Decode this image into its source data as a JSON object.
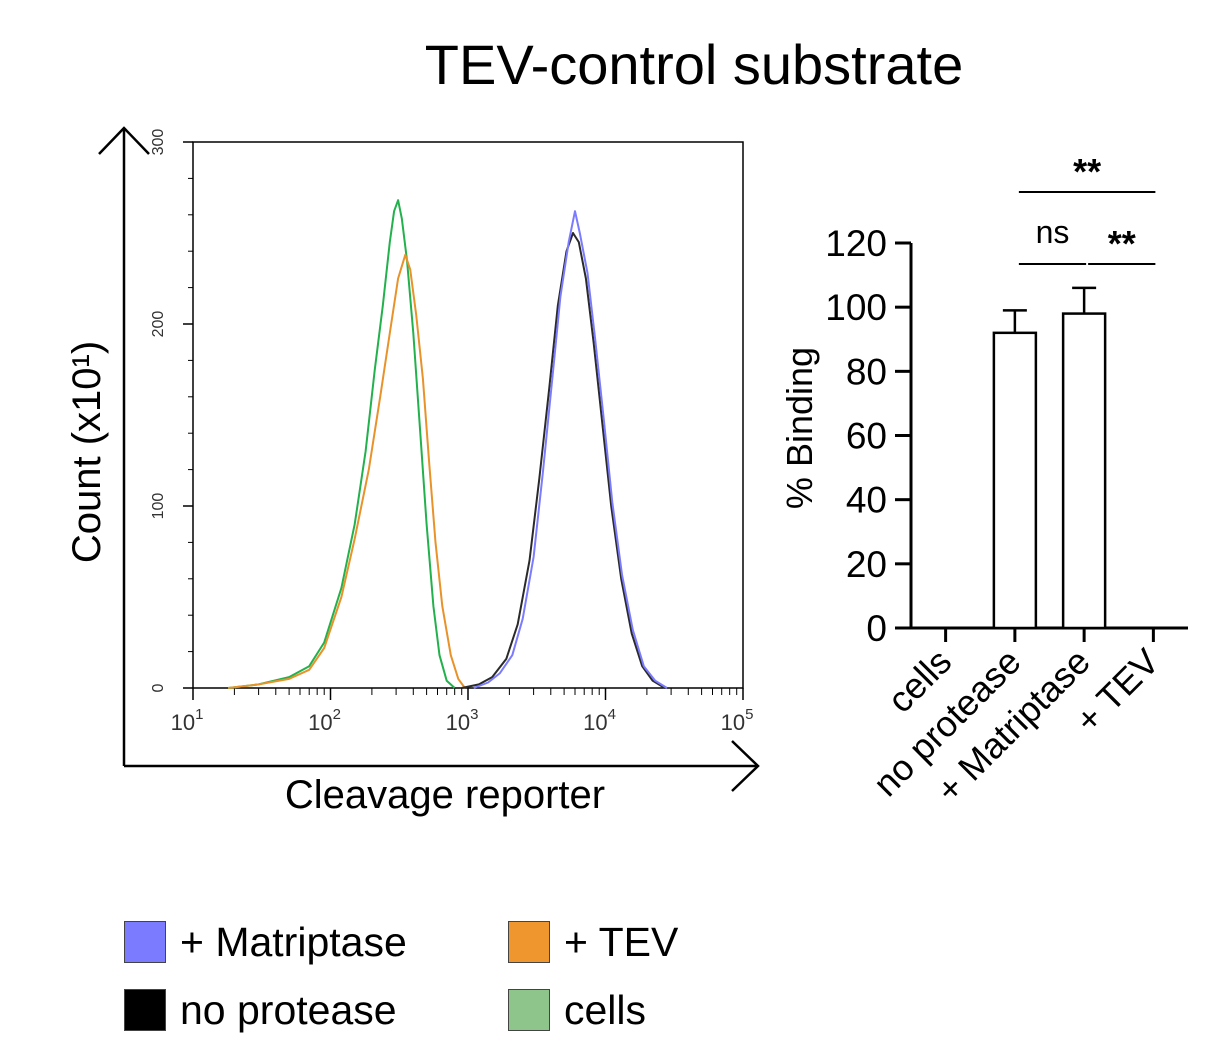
{
  "figure_title": "TEV-control substrate",
  "legend": [
    {
      "label": "+ Matriptase",
      "color": "#7b7bff"
    },
    {
      "label": "+ TEV",
      "color": "#f0962e"
    },
    {
      "label": "no protease",
      "color": "#000000"
    },
    {
      "label": "cells",
      "color": "#8ec58a"
    }
  ],
  "chart_data": [
    {
      "type": "line",
      "subtype": "flow-cytometry-histogram",
      "title": "",
      "outer_ylabel": "Count (x10¹)",
      "xlabel": "Cleavage reporter",
      "xscale": "log10",
      "xlim": [
        10,
        100000
      ],
      "ylim": [
        0,
        300
      ],
      "x_ticks": [
        {
          "value": 10,
          "label": "10",
          "sup": "1"
        },
        {
          "value": 100,
          "label": "10",
          "sup": "2"
        },
        {
          "value": 1000,
          "label": "10",
          "sup": "3"
        },
        {
          "value": 10000,
          "label": "10",
          "sup": "4"
        },
        {
          "value": 100000,
          "label": "10",
          "sup": "5"
        }
      ],
      "y_ticks": [
        0,
        100,
        200,
        300
      ],
      "series": [
        {
          "name": "cells",
          "color": "#22b14c",
          "points": [
            [
              18,
              0
            ],
            [
              30,
              2
            ],
            [
              50,
              6
            ],
            [
              70,
              12
            ],
            [
              90,
              25
            ],
            [
              120,
              55
            ],
            [
              150,
              90
            ],
            [
              180,
              130
            ],
            [
              210,
              175
            ],
            [
              240,
              210
            ],
            [
              270,
              245
            ],
            [
              290,
              262
            ],
            [
              310,
              268
            ],
            [
              330,
              258
            ],
            [
              360,
              235
            ],
            [
              400,
              195
            ],
            [
              450,
              140
            ],
            [
              500,
              90
            ],
            [
              560,
              45
            ],
            [
              620,
              18
            ],
            [
              700,
              4
            ],
            [
              800,
              0
            ]
          ]
        },
        {
          "name": "+ TEV",
          "color": "#e8922a",
          "points": [
            [
              18,
              0
            ],
            [
              30,
              2
            ],
            [
              50,
              5
            ],
            [
              70,
              10
            ],
            [
              90,
              22
            ],
            [
              120,
              50
            ],
            [
              150,
              82
            ],
            [
              190,
              120
            ],
            [
              230,
              160
            ],
            [
              270,
              195
            ],
            [
              310,
              225
            ],
            [
              350,
              238
            ],
            [
              380,
              230
            ],
            [
              420,
              205
            ],
            [
              470,
              170
            ],
            [
              520,
              125
            ],
            [
              580,
              80
            ],
            [
              650,
              45
            ],
            [
              750,
              18
            ],
            [
              850,
              5
            ],
            [
              950,
              0
            ]
          ]
        },
        {
          "name": "no protease",
          "color": "#2a2a2a",
          "points": [
            [
              900,
              0
            ],
            [
              1200,
              2
            ],
            [
              1500,
              6
            ],
            [
              1900,
              16
            ],
            [
              2300,
              35
            ],
            [
              2800,
              70
            ],
            [
              3300,
              115
            ],
            [
              3900,
              165
            ],
            [
              4500,
              210
            ],
            [
              5200,
              240
            ],
            [
              5800,
              250
            ],
            [
              6400,
              245
            ],
            [
              7200,
              225
            ],
            [
              8200,
              190
            ],
            [
              9500,
              145
            ],
            [
              11000,
              100
            ],
            [
              13000,
              60
            ],
            [
              15500,
              30
            ],
            [
              18500,
              12
            ],
            [
              22000,
              4
            ],
            [
              27000,
              0
            ]
          ]
        },
        {
          "name": "+ Matriptase",
          "color": "#7b7bff",
          "points": [
            [
              1100,
              0
            ],
            [
              1400,
              3
            ],
            [
              1700,
              8
            ],
            [
              2100,
              18
            ],
            [
              2500,
              38
            ],
            [
              3000,
              72
            ],
            [
              3500,
              118
            ],
            [
              4100,
              170
            ],
            [
              4700,
              215
            ],
            [
              5400,
              245
            ],
            [
              6000,
              262
            ],
            [
              6500,
              250
            ],
            [
              7400,
              228
            ],
            [
              8400,
              192
            ],
            [
              9700,
              148
            ],
            [
              11200,
              102
            ],
            [
              13200,
              62
            ],
            [
              15800,
              32
            ],
            [
              19000,
              12
            ],
            [
              23000,
              4
            ],
            [
              28000,
              0
            ]
          ]
        }
      ]
    },
    {
      "type": "bar",
      "ylabel": "% Binding",
      "xlabel": "",
      "ylim": [
        0,
        120
      ],
      "y_ticks": [
        0,
        20,
        40,
        60,
        80,
        100,
        120
      ],
      "categories": [
        "cells",
        "no protease",
        "+ Matriptase",
        "+ TEV"
      ],
      "values": [
        0,
        92,
        98,
        0
      ],
      "errors": [
        0,
        7,
        8,
        0
      ],
      "significance": [
        {
          "from": "no protease",
          "to": "+ Matriptase",
          "label": "ns"
        },
        {
          "from": "+ Matriptase",
          "to": "+ TEV",
          "label": "**"
        },
        {
          "from": "no protease",
          "to": "+ TEV",
          "label": "**"
        }
      ]
    }
  ]
}
